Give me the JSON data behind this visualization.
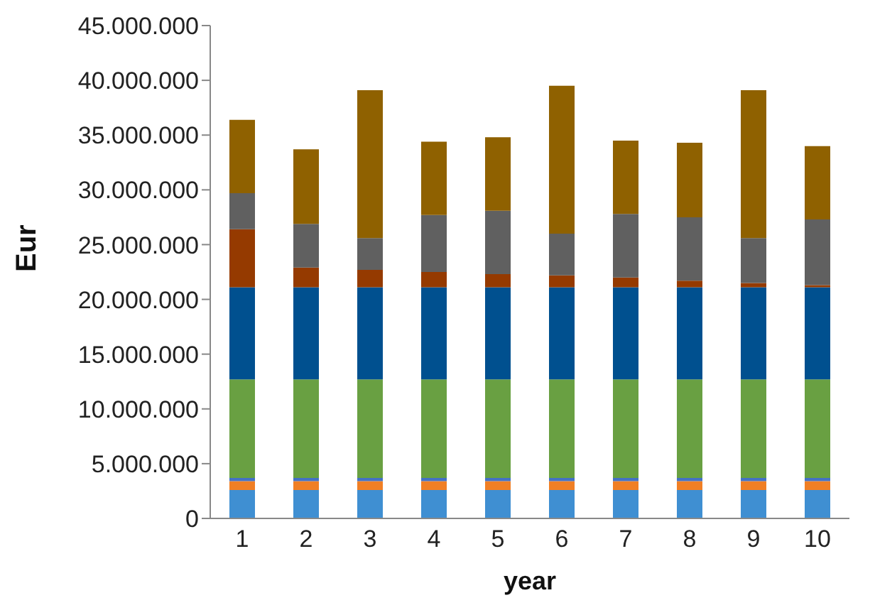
{
  "chart_data": {
    "type": "bar",
    "stacked": true,
    "xlabel": "year",
    "ylabel": "Eur",
    "categories": [
      "1",
      "2",
      "3",
      "4",
      "5",
      "6",
      "7",
      "8",
      "9",
      "10"
    ],
    "series": [
      {
        "color": "#3f8fd2",
        "values": [
          2600000,
          2600000,
          2600000,
          2600000,
          2600000,
          2600000,
          2600000,
          2600000,
          2600000,
          2600000
        ]
      },
      {
        "color": "#f07f25",
        "values": [
          800000,
          800000,
          800000,
          800000,
          800000,
          800000,
          800000,
          800000,
          800000,
          800000
        ]
      },
      {
        "color": "#4472c4",
        "values": [
          300000,
          300000,
          300000,
          300000,
          300000,
          300000,
          300000,
          300000,
          300000,
          300000
        ]
      },
      {
        "color": "#69a042",
        "values": [
          9000000,
          9000000,
          9000000,
          9000000,
          9000000,
          9000000,
          9000000,
          9000000,
          9000000,
          9000000
        ]
      },
      {
        "color": "#00508f",
        "values": [
          8400000,
          8400000,
          8400000,
          8400000,
          8400000,
          8400000,
          8400000,
          8400000,
          8400000,
          8400000
        ]
      },
      {
        "color": "#953a00",
        "values": [
          5300000,
          1800000,
          1600000,
          1400000,
          1200000,
          1100000,
          900000,
          600000,
          400000,
          200000
        ]
      },
      {
        "color": "#606060",
        "values": [
          3300000,
          4000000,
          2900000,
          5200000,
          5800000,
          3800000,
          5800000,
          5800000,
          4100000,
          6000000
        ]
      },
      {
        "color": "#8f6100",
        "values": [
          6700000,
          6800000,
          13500000,
          6700000,
          6700000,
          13500000,
          6700000,
          6800000,
          13500000,
          6700000
        ]
      }
    ],
    "ylim": [
      0,
      45000000
    ],
    "yticks": [
      {
        "value": 0,
        "label": "0"
      },
      {
        "value": 5000000,
        "label": "5.000.000"
      },
      {
        "value": 10000000,
        "label": "10.000.000"
      },
      {
        "value": 15000000,
        "label": "15.000.000"
      },
      {
        "value": 20000000,
        "label": "20.000.000"
      },
      {
        "value": 25000000,
        "label": "25.000.000"
      },
      {
        "value": 30000000,
        "label": "30.000.000"
      },
      {
        "value": 35000000,
        "label": "35.000.000"
      },
      {
        "value": 40000000,
        "label": "40.000.000"
      },
      {
        "value": 45000000,
        "label": "45.000.000"
      }
    ]
  }
}
